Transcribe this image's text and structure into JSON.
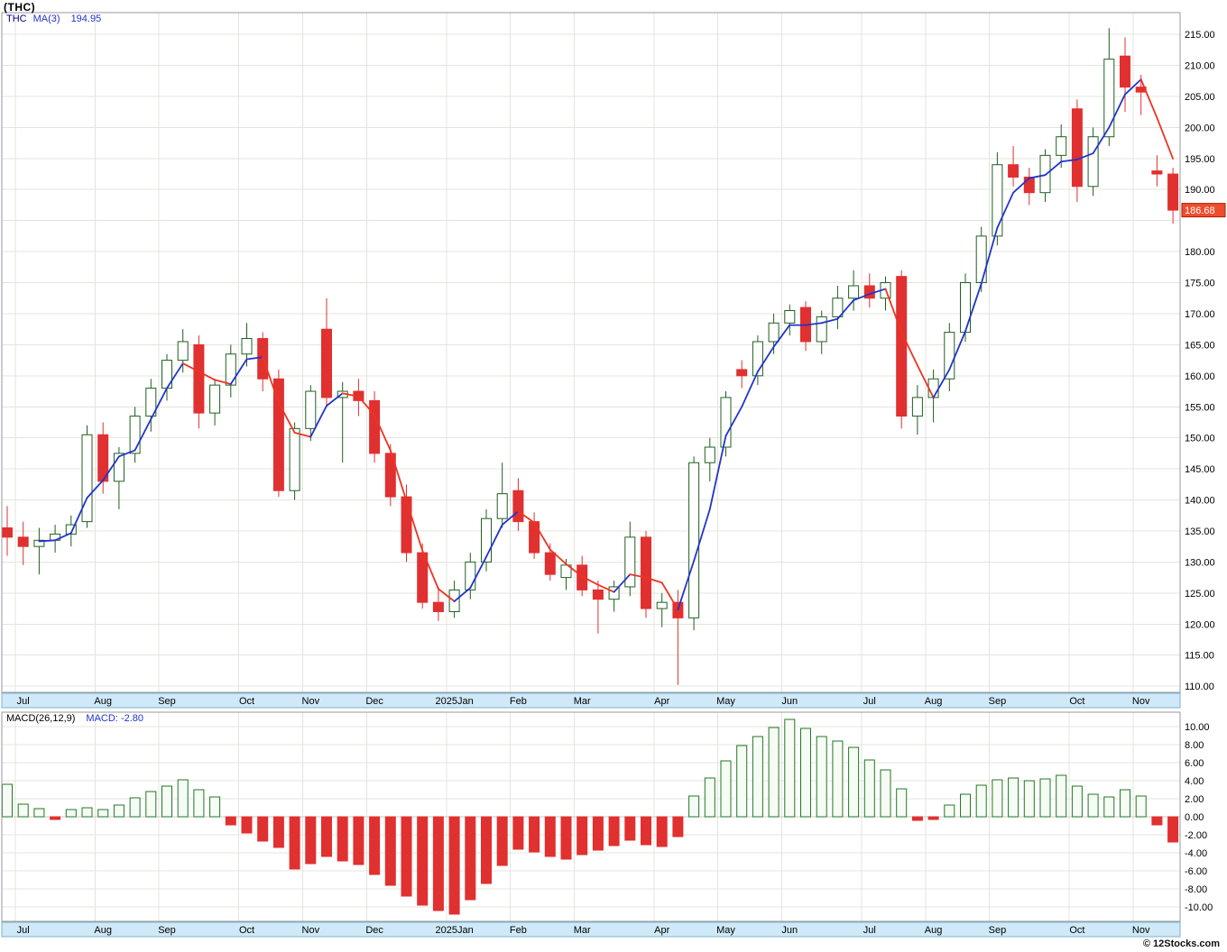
{
  "window": {
    "title": "(THC)"
  },
  "price_pane": {
    "legend": {
      "symbol": "THC",
      "indicator": "MA(3)",
      "value": "194.95"
    },
    "y_ticks": [
      "215.00",
      "210.00",
      "205.00",
      "200.00",
      "195.00",
      "190.00",
      "180.00",
      "175.00",
      "170.00",
      "165.00",
      "160.00",
      "155.00",
      "150.00",
      "145.00",
      "140.00",
      "135.00",
      "130.00",
      "125.00",
      "120.00",
      "115.00",
      "110.00"
    ],
    "last_price": {
      "label": "186.68",
      "value": 186.68
    }
  },
  "macd_pane": {
    "legend": {
      "indicator": "MACD(26,12,9)",
      "label": "MACD:",
      "value": "-2.80"
    },
    "y_ticks": [
      "10.00",
      "8.00",
      "6.00",
      "4.00",
      "2.00",
      "0.00",
      "-2.00",
      "-4.00",
      "-6.00",
      "-8.00",
      "-10.00"
    ]
  },
  "footer": {
    "credit": "© 12Stocks.com"
  },
  "colors": {
    "grid": "#e4e4de",
    "zero_line": "#c8c8c0",
    "border": "#9a9a9a",
    "up_candle_fill": "#ffffff",
    "up_candle_border": "#1f5f1f",
    "down_candle": "#e03030",
    "ma_up": "#2233cc",
    "ma_down": "#ee3322",
    "month_band_bg": "#cfe9f8",
    "month_band_border": "#7fb2d0",
    "last_price_bg": "#ee4e2e",
    "last_price_border": "#aa2200",
    "macd_pos_fill": "#f7fbf5",
    "macd_pos_border": "#1f7a22",
    "macd_neg": "#e03030"
  },
  "chart_data": [
    {
      "type": "candlestick",
      "title": "(THC)",
      "timeframe": "weekly",
      "ylim": [
        110,
        215
      ],
      "ytick_step": 5,
      "legend": "THC MA(3) 194.95",
      "last_close": 186.68,
      "x_tick_labels": [
        "Jul",
        "Aug",
        "Sep",
        "Oct",
        "Nov",
        "Dec",
        "2025Jan",
        "Feb",
        "Mar",
        "Apr",
        "May",
        "Jun",
        "Jul",
        "Aug",
        "Sep",
        "Oct",
        "Nov"
      ],
      "x_tick_indices": [
        1,
        6,
        10,
        15,
        19,
        23,
        28,
        32,
        36,
        41,
        45,
        49,
        54,
        58,
        62,
        67,
        71
      ],
      "overlays": [
        {
          "name": "MA(3)",
          "period": 3,
          "last_value": 194.95,
          "style": "blue when rising, red when falling"
        }
      ],
      "ohlc": [
        [
          135.5,
          139,
          131,
          134
        ],
        [
          134,
          136.5,
          129.5,
          132.5
        ],
        [
          132.5,
          135.5,
          128,
          133.5
        ],
        [
          133.5,
          136,
          131.5,
          134.5
        ],
        [
          134.5,
          137.5,
          132.5,
          136
        ],
        [
          136.5,
          152,
          135.5,
          150.5
        ],
        [
          150.5,
          152.5,
          141,
          143
        ],
        [
          143,
          148.5,
          138.5,
          147.5
        ],
        [
          147.5,
          155,
          146,
          153.5
        ],
        [
          153.5,
          159.5,
          151,
          158
        ],
        [
          158,
          163.5,
          156,
          162.5
        ],
        [
          162.5,
          167.5,
          160.5,
          165.5
        ],
        [
          165,
          166.5,
          151.5,
          154
        ],
        [
          154,
          159.5,
          152,
          158.5
        ],
        [
          158.5,
          165,
          156.5,
          163.5
        ],
        [
          163.5,
          168.5,
          161.5,
          166
        ],
        [
          166,
          167,
          157.5,
          159.5
        ],
        [
          159.5,
          161,
          140.5,
          141.5
        ],
        [
          141.5,
          152.5,
          140,
          151.5
        ],
        [
          151.5,
          158.5,
          149.5,
          157.5
        ],
        [
          167.5,
          172.5,
          155,
          156.5
        ],
        [
          156.5,
          159,
          146,
          157.5
        ],
        [
          157.5,
          159.5,
          153.5,
          156
        ],
        [
          156,
          157.5,
          146,
          147.5
        ],
        [
          147.5,
          149,
          139,
          140.5
        ],
        [
          140.5,
          142.5,
          130,
          131.5
        ],
        [
          131.5,
          133,
          122.5,
          123.5
        ],
        [
          123.5,
          126,
          120.5,
          122
        ],
        [
          122,
          127,
          121,
          125.5
        ],
        [
          125.5,
          131.5,
          124,
          130
        ],
        [
          130,
          138.5,
          128.5,
          137
        ],
        [
          137,
          146,
          135.5,
          141
        ],
        [
          141.5,
          143.5,
          135,
          136.5
        ],
        [
          136.5,
          138,
          130.5,
          131.5
        ],
        [
          131.5,
          133,
          127,
          128
        ],
        [
          127.5,
          130.5,
          125.5,
          129.5
        ],
        [
          129.5,
          131,
          124.5,
          125.5
        ],
        [
          125.5,
          127,
          118.5,
          124
        ],
        [
          124,
          127,
          122,
          126
        ],
        [
          126,
          136.5,
          124.5,
          134
        ],
        [
          134,
          135,
          121,
          122.5
        ],
        [
          122.5,
          125,
          119.5,
          123.5
        ],
        [
          123.5,
          125.5,
          110.2,
          121
        ],
        [
          121,
          147,
          119,
          146
        ],
        [
          146,
          150,
          143,
          148.5
        ],
        [
          148.5,
          157.5,
          147,
          156.5
        ],
        [
          161,
          162.5,
          158,
          160
        ],
        [
          160,
          166.5,
          158.5,
          165.5
        ],
        [
          165.5,
          170,
          163.5,
          168.5
        ],
        [
          168.5,
          171.5,
          166.5,
          170.5
        ],
        [
          171,
          172,
          164,
          165.5
        ],
        [
          165.5,
          170.5,
          163.5,
          169.5
        ],
        [
          169.5,
          174.5,
          167.5,
          172.5
        ],
        [
          172.5,
          177,
          170.5,
          174.5
        ],
        [
          174.5,
          176.5,
          171,
          172.5
        ],
        [
          172.5,
          176,
          170.5,
          175
        ],
        [
          176,
          177,
          151.5,
          153.5
        ],
        [
          153.5,
          158.5,
          150.5,
          156.5
        ],
        [
          156.5,
          161,
          152.5,
          159.5
        ],
        [
          159.5,
          168.5,
          157.5,
          167
        ],
        [
          167,
          176.5,
          165.5,
          175
        ],
        [
          175,
          184,
          173.5,
          182.5
        ],
        [
          182.5,
          196,
          181,
          194
        ],
        [
          194,
          197,
          190.5,
          192
        ],
        [
          192,
          193.5,
          187.5,
          189.5
        ],
        [
          189.5,
          196.5,
          188,
          195.5
        ],
        [
          195.5,
          200.5,
          193.5,
          198.5
        ],
        [
          203,
          204.5,
          188,
          190.5
        ],
        [
          190.5,
          200,
          189,
          198.5
        ],
        [
          198.5,
          216,
          197,
          211
        ],
        [
          211.5,
          214.5,
          202.5,
          206.5
        ],
        [
          206.5,
          208.5,
          202,
          205.7
        ],
        [
          193,
          195.5,
          190.5,
          192.5
        ],
        [
          192.5,
          193.5,
          184.5,
          186.68
        ]
      ]
    },
    {
      "type": "bar",
      "title": "MACD(26,12,9)",
      "ylim": [
        -11,
        11
      ],
      "ytick_step": 2,
      "last_value": -2.8,
      "values": [
        3.6,
        1.4,
        0.9,
        -0.3,
        0.8,
        1.0,
        0.8,
        1.3,
        2.1,
        2.8,
        3.4,
        4.1,
        3.0,
        2.2,
        -0.9,
        -1.8,
        -2.7,
        -3.4,
        -5.8,
        -5.2,
        -4.4,
        -4.9,
        -5.3,
        -6.4,
        -7.6,
        -8.8,
        -9.8,
        -10.4,
        -10.8,
        -9.2,
        -7.4,
        -5.4,
        -3.6,
        -3.9,
        -4.4,
        -4.7,
        -4.2,
        -3.7,
        -3.2,
        -2.6,
        -3.1,
        -3.3,
        -2.2,
        2.3,
        4.3,
        6.2,
        7.9,
        8.9,
        9.9,
        10.8,
        9.8,
        8.9,
        8.4,
        7.7,
        6.3,
        5.2,
        3.1,
        -0.4,
        -0.3,
        1.3,
        2.5,
        3.5,
        4.1,
        4.3,
        4.0,
        4.2,
        4.6,
        3.4,
        2.5,
        2.2,
        3.0,
        2.3,
        -0.9,
        -2.8
      ]
    }
  ]
}
